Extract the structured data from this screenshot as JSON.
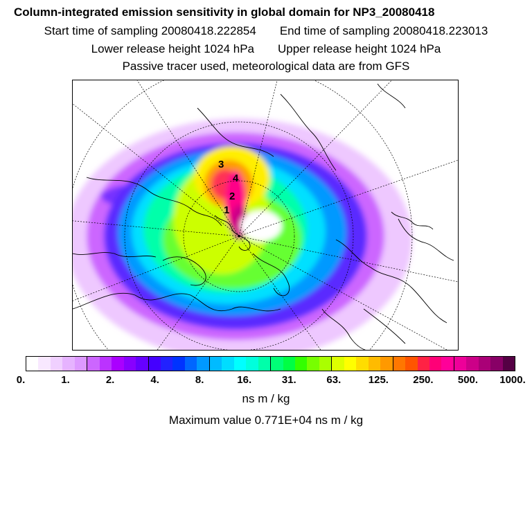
{
  "header": {
    "title": "Column-integrated emission sensitivity in global domain for NP3_20080418",
    "start_time": "Start time of sampling 20080418.222854",
    "end_time": "End time of sampling 20080418.223013",
    "lower_release": "Lower release height 1024 hPa",
    "upper_release": "Upper release height 1024 hPa",
    "tracer_note": "Passive tracer used, meteorological data are from GFS"
  },
  "map": {
    "markers": [
      "3",
      "4",
      "1",
      "2"
    ]
  },
  "colorbar": {
    "colors": [
      "#ffffff",
      "#f8e8ff",
      "#f0d0ff",
      "#e6b3ff",
      "#dd99ff",
      "#cc66ff",
      "#bb33ff",
      "#aa00ff",
      "#8800ff",
      "#6600ff",
      "#4400ff",
      "#2222ff",
      "#0033ff",
      "#0066ff",
      "#0099ff",
      "#00bbff",
      "#00ddff",
      "#00ffff",
      "#00ffdd",
      "#00ffaa",
      "#00ff77",
      "#00ff44",
      "#33ff00",
      "#77ff00",
      "#aaff00",
      "#ddff00",
      "#ffff00",
      "#ffdd00",
      "#ffbb00",
      "#ff9900",
      "#ff7700",
      "#ff5500",
      "#ff2244",
      "#ff0077",
      "#ff0099",
      "#ee0099",
      "#cc0088",
      "#aa0077",
      "#880066",
      "#550044"
    ],
    "tick_labels": [
      "0.",
      "1.",
      "2.",
      "4.",
      "8.",
      "16.",
      "31.",
      "63.",
      "125.",
      "250.",
      "500.",
      "1000."
    ],
    "units": "ns m / kg"
  },
  "footer": {
    "max_value": "Maximum value  0.771E+04 ns m / kg"
  }
}
